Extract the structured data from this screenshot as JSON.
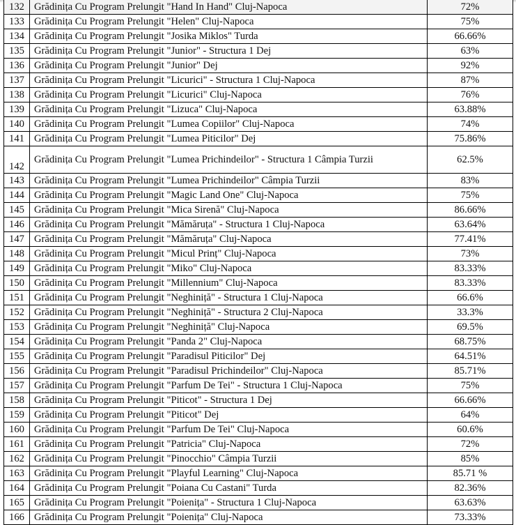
{
  "rows": [
    {
      "n": "132",
      "name": "Grădinița Cu Program Prelungit \"Hand In Hand\" Cluj-Napoca",
      "pct": "72%"
    },
    {
      "n": "133",
      "name": "Grădinița Cu Program Prelungit \"Helen\" Cluj-Napoca",
      "pct": "75%"
    },
    {
      "n": "134",
      "name": "Grădinița Cu Program Prelungit \"Josika Miklos\" Turda",
      "pct": "66.66%"
    },
    {
      "n": "135",
      "name": "Grădinița Cu Program Prelungit \"Junior\" - Structura 1 Dej",
      "pct": "63%"
    },
    {
      "n": "136",
      "name": "Grădinița Cu Program Prelungit \"Junior\" Dej",
      "pct": "92%"
    },
    {
      "n": "137",
      "name": "Grădinița Cu Program Prelungit \"Licurici\" - Structura 1 Cluj-Napoca",
      "pct": "87%"
    },
    {
      "n": "138",
      "name": "Grădinița Cu Program Prelungit \"Licurici\" Cluj-Napoca",
      "pct": "76%"
    },
    {
      "n": "139",
      "name": "Grădinița Cu Program Prelungit \"Lizuca\" Cluj-Napoca",
      "pct": "63.88%"
    },
    {
      "n": "140",
      "name": "Grădinița Cu Program Prelungit \"Lumea Copiilor\" Cluj-Napoca",
      "pct": "74%"
    },
    {
      "n": "141",
      "name": "Grădinița Cu Program Prelungit \"Lumea Piticilor\" Dej",
      "pct": "75.86%"
    },
    {
      "n": "142",
      "name": "Grădinița Cu Program Prelungit \"Lumea Prichindeilor\" - Structura 1 Câmpia Turzii",
      "pct": "62.5%",
      "tall": true
    },
    {
      "n": "143",
      "name": "Grădinița Cu Program Prelungit \"Lumea Prichindeilor\" Câmpia Turzii",
      "pct": "83%"
    },
    {
      "n": "144",
      "name": "Grădinița Cu Program Prelungit \"Magic Land One\" Cluj-Napoca",
      "pct": "75%"
    },
    {
      "n": "145",
      "name": "Grădinița Cu Program Prelungit \"Mica Sirenă\" Cluj-Napoca",
      "pct": "86.66%"
    },
    {
      "n": "146",
      "name": "Grădinița Cu Program Prelungit \"Mămăruța\" - Structura 1 Cluj-Napoca",
      "pct": "63.64%"
    },
    {
      "n": "147",
      "name": "Grădinița Cu Program Prelungit \"Mămăruța\" Cluj-Napoca",
      "pct": "77.41%"
    },
    {
      "n": "148",
      "name": "Grădinița Cu Program Prelungit \"Micul Prinț\" Cluj-Napoca",
      "pct": "73%"
    },
    {
      "n": "149",
      "name": "Grădinița Cu Program Prelungit \"Miko\" Cluj-Napoca",
      "pct": "83.33%"
    },
    {
      "n": "150",
      "name": "Grădinița Cu Program Prelungit \"Millennium\" Cluj-Napoca",
      "pct": "83.33%"
    },
    {
      "n": "151",
      "name": "Grădinița Cu Program Prelungit \"Neghiniță\" - Structura 1 Cluj-Napoca",
      "pct": "66.6%"
    },
    {
      "n": "152",
      "name": "Grădinița Cu Program Prelungit \"Neghiniță\" - Structura 2 Cluj-Napoca",
      "pct": "33.3%"
    },
    {
      "n": "153",
      "name": "Grădinița Cu Program Prelungit \"Neghiniță\" Cluj-Napoca",
      "pct": "69.5%"
    },
    {
      "n": "154",
      "name": "Grădinița Cu Program Prelungit \"Panda 2\" Cluj-Napoca",
      "pct": "68.75%"
    },
    {
      "n": "155",
      "name": "Grădinița Cu Program Prelungit \"Paradisul Piticilor\" Dej",
      "pct": "64.51%"
    },
    {
      "n": "156",
      "name": "Grădinița Cu Program Prelungit \"Paradisul Prichindeilor\" Cluj-Napoca",
      "pct": "85.71%"
    },
    {
      "n": "157",
      "name": "Grădinița Cu Program Prelungit \"Parfum De Tei\" - Structura 1 Cluj-Napoca",
      "pct": "75%"
    },
    {
      "n": "158",
      "name": "Grădinița Cu Program Prelungit \"Piticot\" - Structura 1 Dej",
      "pct": "66.66%"
    },
    {
      "n": "159",
      "name": "Grădinița Cu Program Prelungit \"Piticot\" Dej",
      "pct": "64%"
    },
    {
      "n": "160",
      "name": "Grădinița Cu Program Prelungit \"Parfum De Tei\" Cluj-Napoca",
      "pct": "60.6%"
    },
    {
      "n": "161",
      "name": "Grădinița Cu Program Prelungit \"Patricia\" Cluj-Napoca",
      "pct": "72%"
    },
    {
      "n": "162",
      "name": "Grădinița Cu Program Prelungit \"Pinocchio\" Câmpia Turzii",
      "pct": "85%"
    },
    {
      "n": "163",
      "name": "Grădinița Cu Program Prelungit \"Playful Learning\" Cluj-Napoca",
      "pct": "85.71 %"
    },
    {
      "n": "164",
      "name": "Grădinița Cu Program Prelungit \"Poiana Cu Castani\" Turda",
      "pct": "82.36%"
    },
    {
      "n": "165",
      "name": "Grădinița Cu Program Prelungit \"Poienița\" - Structura 1 Cluj-Napoca",
      "pct": "63.63%"
    },
    {
      "n": "166",
      "name": "Grădinița Cu Program Prelungit \"Poienița\" Cluj-Napoca",
      "pct": "73.33%"
    }
  ]
}
